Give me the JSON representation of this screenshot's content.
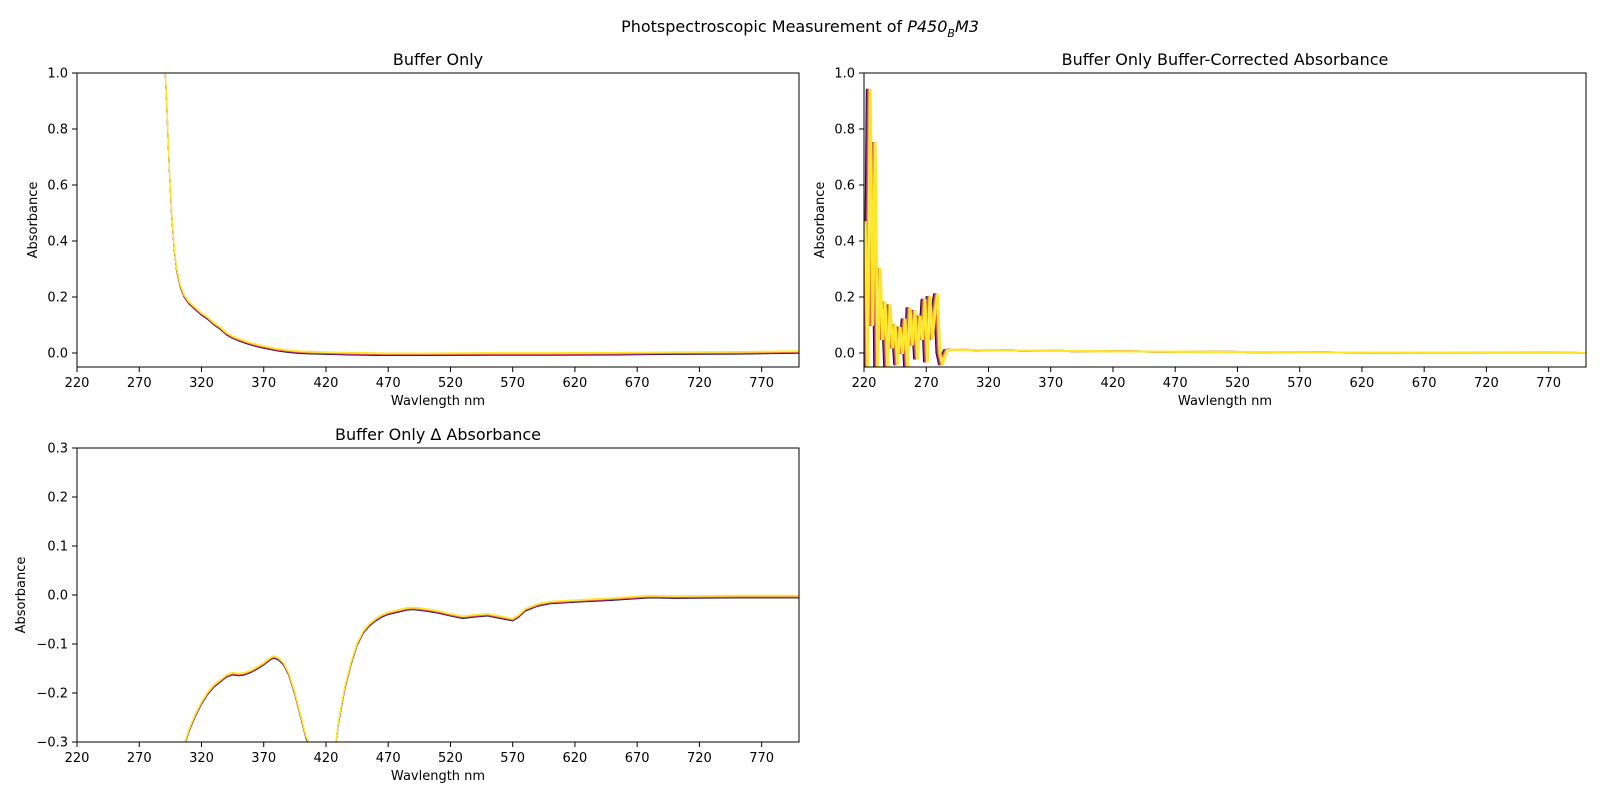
{
  "figure": {
    "title_main": "Photspectroscopic Measurement of ",
    "title_math_base": "P450",
    "title_math_sub": "B",
    "title_math_tail": "M3"
  },
  "chart_data": [
    {
      "type": "line",
      "title": "Buffer Only",
      "xlabel": "Wavlength nm",
      "ylabel": "Absorbance",
      "xlim": [
        220,
        800
      ],
      "ylim": [
        -0.05,
        1.0
      ],
      "xticks": [
        "220",
        "270",
        "320",
        "370",
        "420",
        "470",
        "520",
        "570",
        "620",
        "670",
        "720",
        "770"
      ],
      "yticks": [
        "0.0",
        "0.2",
        "0.4",
        "0.6",
        "0.8",
        "1.0"
      ],
      "colors": [
        "#000004",
        "#3b0f70",
        "#6b1d81",
        "#a3307e",
        "#d8456c",
        "#f2654f",
        "#fb9b06",
        "#f9c932",
        "#fcffa4",
        "#fde725"
      ],
      "series": [
        {
          "x": [
            291,
            292,
            294,
            296,
            298,
            300,
            303,
            306,
            310,
            315,
            320,
            325,
            330,
            335,
            340,
            345,
            350,
            355,
            360,
            365,
            370,
            380,
            390,
            400,
            420,
            440,
            470,
            500,
            550,
            600,
            650,
            700,
            750,
            800
          ],
          "values": [
            1.0,
            0.9,
            0.68,
            0.5,
            0.38,
            0.3,
            0.24,
            0.205,
            0.18,
            0.16,
            0.14,
            0.125,
            0.105,
            0.09,
            0.07,
            0.057,
            0.048,
            0.04,
            0.033,
            0.027,
            0.022,
            0.013,
            0.007,
            0.003,
            0.0,
            -0.002,
            -0.004,
            -0.004,
            -0.003,
            -0.003,
            -0.002,
            0.0,
            0.001,
            0.004
          ]
        }
      ]
    },
    {
      "type": "line",
      "title": "Buffer Only Buffer-Corrected Absorbance",
      "xlabel": "Wavlength nm",
      "ylabel": "Absorbance",
      "xlim": [
        220,
        800
      ],
      "ylim": [
        -0.05,
        1.0
      ],
      "xticks": [
        "220",
        "270",
        "320",
        "370",
        "420",
        "470",
        "520",
        "570",
        "620",
        "670",
        "720",
        "770"
      ],
      "yticks": [
        "0.0",
        "0.2",
        "0.4",
        "0.6",
        "0.8",
        "1.0"
      ],
      "colors": [
        "#000004",
        "#3b0f70",
        "#6b1d81",
        "#a3307e",
        "#d8456c",
        "#f2654f",
        "#fb9b06",
        "#f9c932",
        "#fcffa4",
        "#fde725"
      ],
      "series": [
        {
          "x": [
            220,
            222,
            224,
            226,
            228,
            230,
            232,
            234,
            236,
            238,
            240,
            242,
            244,
            246,
            248,
            250,
            252,
            254,
            256,
            258,
            260,
            262,
            264,
            266,
            268,
            270,
            272,
            274,
            276,
            278,
            280,
            282,
            284,
            286,
            290,
            300,
            320,
            360,
            420,
            500,
            600,
            700,
            800
          ],
          "values": [
            0.47,
            -0.05,
            0.94,
            0.1,
            0.75,
            -0.05,
            0.3,
            0.05,
            0.18,
            -0.05,
            0.17,
            0.02,
            0.1,
            -0.04,
            0.09,
            0.0,
            0.12,
            -0.05,
            0.16,
            0.03,
            0.15,
            -0.02,
            0.13,
            0.05,
            0.19,
            -0.03,
            0.2,
            0.05,
            0.15,
            0.21,
            0.0,
            -0.04,
            -0.01,
            0.01,
            0.012,
            0.011,
            0.01,
            0.008,
            0.006,
            0.004,
            0.002,
            0.001,
            0.0
          ]
        }
      ]
    },
    {
      "type": "line",
      "title": "Buffer Only Δ Absorbance",
      "xlabel": "Wavlength nm",
      "ylabel": "Absorbance",
      "xlim": [
        220,
        800
      ],
      "ylim": [
        -0.3,
        0.3
      ],
      "xticks": [
        "220",
        "270",
        "320",
        "370",
        "420",
        "470",
        "520",
        "570",
        "620",
        "670",
        "720",
        "770"
      ],
      "yticks": [
        "−0.3",
        "−0.2",
        "−0.1",
        "0.0",
        "0.1",
        "0.2",
        "0.3"
      ],
      "colors": [
        "#000004",
        "#3b0f70",
        "#6b1d81",
        "#a3307e",
        "#d8456c",
        "#f2654f",
        "#fb9b06",
        "#f9c932",
        "#fcffa4",
        "#fde725"
      ],
      "series": [
        {
          "x": [
            307,
            310,
            315,
            320,
            325,
            330,
            335,
            340,
            345,
            350,
            355,
            360,
            365,
            370,
            375,
            378,
            382,
            386,
            390,
            395,
            400,
            404,
            406
          ],
          "values": [
            -0.3,
            -0.275,
            -0.245,
            -0.22,
            -0.2,
            -0.185,
            -0.175,
            -0.165,
            -0.16,
            -0.162,
            -0.16,
            -0.155,
            -0.148,
            -0.14,
            -0.13,
            -0.126,
            -0.13,
            -0.14,
            -0.16,
            -0.2,
            -0.25,
            -0.29,
            -0.3
          ]
        },
        {
          "x": [
            428,
            430,
            435,
            440,
            445,
            450,
            455,
            460,
            465,
            470,
            475,
            480,
            485,
            490,
            500,
            510,
            520,
            530,
            540,
            550,
            560,
            570,
            575,
            580,
            590,
            600,
            620,
            650,
            680,
            700,
            750,
            800
          ],
          "values": [
            -0.3,
            -0.26,
            -0.19,
            -0.14,
            -0.1,
            -0.075,
            -0.06,
            -0.05,
            -0.042,
            -0.037,
            -0.034,
            -0.031,
            -0.028,
            -0.027,
            -0.03,
            -0.034,
            -0.04,
            -0.045,
            -0.042,
            -0.04,
            -0.045,
            -0.05,
            -0.042,
            -0.03,
            -0.02,
            -0.015,
            -0.012,
            -0.008,
            -0.003,
            -0.004,
            -0.003,
            -0.003
          ]
        }
      ]
    }
  ]
}
